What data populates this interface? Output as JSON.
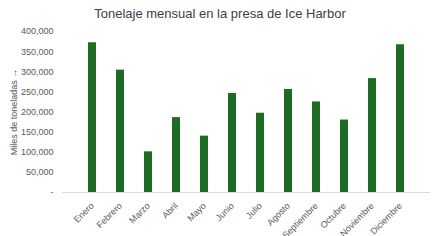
{
  "chart_data": {
    "type": "bar",
    "title": "Tonelaje mensual en la presa de Ice Harbor",
    "y_label": "Miles de toneladas",
    "categories": [
      "Enero",
      "Febrero",
      "Marzo",
      "Abril",
      "Mayo",
      "Junio",
      "Julio",
      "Agosto",
      "Septiembre",
      "Octubre",
      "Noviembre",
      "Diciembre"
    ],
    "values": [
      372000,
      304000,
      101000,
      186000,
      140000,
      246000,
      197000,
      256000,
      225000,
      180000,
      283000,
      367000
    ],
    "color": "#1e6b24",
    "ylim": [
      0,
      400000
    ],
    "yticks": [
      {
        "value": 0,
        "label": "-"
      },
      {
        "value": 50000,
        "label": "50,000"
      },
      {
        "value": 100000,
        "label": "100,000"
      },
      {
        "value": 150000,
        "label": "150,000"
      },
      {
        "value": 200000,
        "label": "200,000"
      },
      {
        "value": 250000,
        "label": "250,000"
      },
      {
        "value": 300000,
        "label": "300,000"
      },
      {
        "value": 350000,
        "label": "350,000"
      },
      {
        "value": 400000,
        "label": "400,000"
      }
    ],
    "grid": false
  }
}
